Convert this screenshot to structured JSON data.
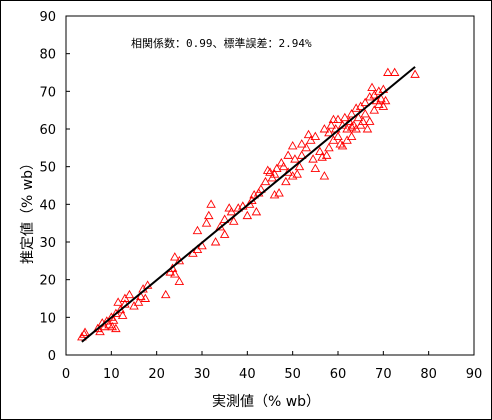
{
  "chart_data": {
    "type": "scatter",
    "title": "",
    "xlabel": "実測値（% wb）",
    "ylabel": "推定値（% wb）",
    "annotation": "相関係数：0.99、標準誤差：2.94%",
    "xlim": [
      0,
      90
    ],
    "ylim": [
      0,
      90
    ],
    "xticks": [
      "0",
      "10",
      "20",
      "30",
      "40",
      "50",
      "60",
      "70",
      "80",
      "90"
    ],
    "yticks": [
      "0",
      "10",
      "20",
      "30",
      "40",
      "50",
      "60",
      "70",
      "80",
      "90"
    ],
    "grid": false,
    "marker": "triangle",
    "marker_color": "#ff0000",
    "line_color": "#000000",
    "fit_line": {
      "x": [
        3.5,
        77
      ],
      "y": [
        3.5,
        76.5
      ]
    },
    "points": [
      [
        3.5,
        4.8
      ],
      [
        4,
        5.5
      ],
      [
        4.2,
        6
      ],
      [
        7,
        7
      ],
      [
        7.5,
        6.2
      ],
      [
        8,
        8.5
      ],
      [
        8.5,
        7.5
      ],
      [
        9,
        9
      ],
      [
        9.5,
        8
      ],
      [
        10,
        10
      ],
      [
        10.2,
        7.5
      ],
      [
        10.5,
        9.2
      ],
      [
        11,
        11
      ],
      [
        11,
        7
      ],
      [
        11.5,
        14
      ],
      [
        12,
        12
      ],
      [
        12.5,
        10.5
      ],
      [
        13,
        15
      ],
      [
        13,
        13.5
      ],
      [
        14,
        16
      ],
      [
        15,
        13
      ],
      [
        16,
        14
      ],
      [
        16.5,
        15.5
      ],
      [
        17,
        17.5
      ],
      [
        17.5,
        15
      ],
      [
        18,
        18.5
      ],
      [
        22,
        16
      ],
      [
        23,
        22
      ],
      [
        23.5,
        23
      ],
      [
        24,
        26
      ],
      [
        24,
        21.5
      ],
      [
        25,
        25
      ],
      [
        25,
        19.5
      ],
      [
        28,
        27
      ],
      [
        29,
        28
      ],
      [
        29,
        33
      ],
      [
        30,
        29
      ],
      [
        31,
        35
      ],
      [
        31.5,
        37
      ],
      [
        32,
        40
      ],
      [
        33,
        30
      ],
      [
        34,
        34
      ],
      [
        35,
        36
      ],
      [
        35,
        32
      ],
      [
        36,
        39
      ],
      [
        36.5,
        38
      ],
      [
        37,
        35.5
      ],
      [
        38,
        39
      ],
      [
        39,
        39.5
      ],
      [
        40,
        37
      ],
      [
        40.5,
        40
      ],
      [
        41,
        41
      ],
      [
        41.5,
        42.5
      ],
      [
        42,
        38
      ],
      [
        42.5,
        43
      ],
      [
        43,
        44
      ],
      [
        44,
        46
      ],
      [
        44.5,
        49
      ],
      [
        45,
        48.5
      ],
      [
        45.5,
        47
      ],
      [
        46,
        42.5
      ],
      [
        46,
        48
      ],
      [
        46.5,
        49.5
      ],
      [
        47,
        43
      ],
      [
        47.5,
        51
      ],
      [
        48,
        50
      ],
      [
        48.5,
        46
      ],
      [
        49,
        53
      ],
      [
        49,
        48.5
      ],
      [
        50,
        55.5
      ],
      [
        50,
        47.5
      ],
      [
        50.5,
        52
      ],
      [
        51,
        48
      ],
      [
        51.5,
        50
      ],
      [
        52,
        53
      ],
      [
        52,
        56
      ],
      [
        53,
        55
      ],
      [
        53.5,
        58.5
      ],
      [
        54,
        57
      ],
      [
        54.5,
        52
      ],
      [
        55,
        58
      ],
      [
        55,
        49.5
      ],
      [
        56,
        54
      ],
      [
        56.5,
        52.5
      ],
      [
        57,
        47.5
      ],
      [
        57.5,
        53
      ],
      [
        58,
        55
      ],
      [
        58,
        59
      ],
      [
        58.5,
        61
      ],
      [
        59,
        57
      ],
      [
        59.5,
        60
      ],
      [
        60,
        58
      ],
      [
        60,
        62.5
      ],
      [
        60.5,
        56
      ],
      [
        61,
        61
      ],
      [
        61,
        55.5
      ],
      [
        61.5,
        63
      ],
      [
        62,
        57
      ],
      [
        62,
        60
      ],
      [
        62.5,
        62
      ],
      [
        63,
        64
      ],
      [
        63,
        58
      ],
      [
        63.5,
        61
      ],
      [
        64,
        65.5
      ],
      [
        64,
        60
      ],
      [
        64.5,
        63
      ],
      [
        65,
        66
      ],
      [
        65,
        61
      ],
      [
        65.5,
        62
      ],
      [
        66,
        64
      ],
      [
        66,
        67
      ],
      [
        66.5,
        60
      ],
      [
        67,
        68.5
      ],
      [
        67,
        62
      ],
      [
        67.5,
        71
      ],
      [
        68,
        65
      ],
      [
        68,
        69
      ],
      [
        68.5,
        67.5
      ],
      [
        69,
        70
      ],
      [
        69,
        66.5
      ],
      [
        69.5,
        68
      ],
      [
        70,
        66
      ],
      [
        70,
        70.5
      ],
      [
        70.5,
        67.5
      ],
      [
        71,
        75
      ],
      [
        72.5,
        75
      ],
      [
        77,
        74.5
      ],
      [
        63,
        60.5
      ],
      [
        59,
        62.5
      ],
      [
        57,
        60
      ]
    ]
  }
}
